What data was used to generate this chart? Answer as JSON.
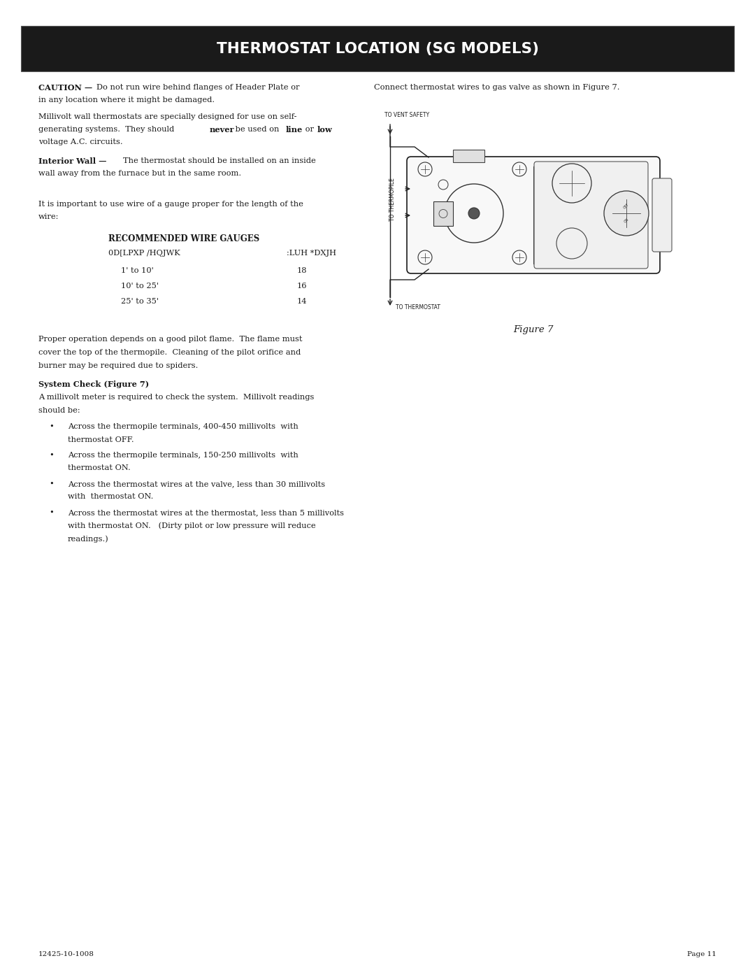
{
  "title": "THERMOSTAT LOCATION (SG MODELS)",
  "title_bg": "#1a1a1a",
  "title_color": "#ffffff",
  "bg_color": "#ffffff",
  "text_color": "#1a1a1a",
  "page_width": 10.8,
  "page_height": 13.97,
  "footer_left": "12425-10-1008",
  "footer_right": "Page 11",
  "right_col_intro": "Connect thermostat wires to gas valve as shown in Figure 7.",
  "table_title": "RECOMMENDED WIRE GAUGES",
  "table_col1_header": "0D[LPXP /HQJWK",
  "table_col2_header": ":LUH *DXJH",
  "table_rows": [
    [
      "1' to 10'",
      "18"
    ],
    [
      "10' to 25'",
      "16"
    ],
    [
      "25' to 35'",
      "14"
    ]
  ],
  "figure_label": "Figure 7"
}
